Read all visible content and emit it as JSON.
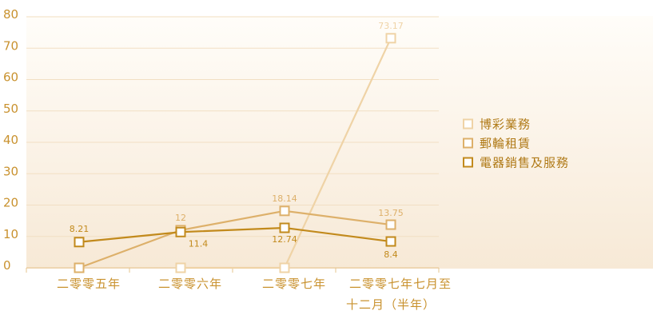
{
  "chart_data": {
    "type": "line",
    "categories": [
      "二零零五年",
      "二零零六年",
      "二零零七年",
      "二零零七年七月至\n十二月（半年）"
    ],
    "ylim": [
      0,
      80
    ],
    "yticks": [
      "0",
      "10",
      "20",
      "30",
      "40",
      "50",
      "60",
      "70",
      "80"
    ],
    "grid": true,
    "legend_position": "right",
    "series": [
      {
        "name": "博彩業務",
        "color": "#efd3a6",
        "values": [
          null,
          0,
          0,
          73.17
        ],
        "labels": [
          "",
          "",
          "",
          "73.17"
        ]
      },
      {
        "name": "郵輪租賃",
        "color": "#ddb06a",
        "values": [
          0,
          12,
          18.14,
          13.75
        ],
        "labels": [
          "",
          "12",
          "18.14",
          "13.75"
        ]
      },
      {
        "name": "電器銷售及服務",
        "color": "#c28a1c",
        "values": [
          8.21,
          11.4,
          12.74,
          8.4
        ],
        "labels": [
          "8.21",
          "11.4",
          "12.74",
          "8.4"
        ]
      }
    ]
  }
}
